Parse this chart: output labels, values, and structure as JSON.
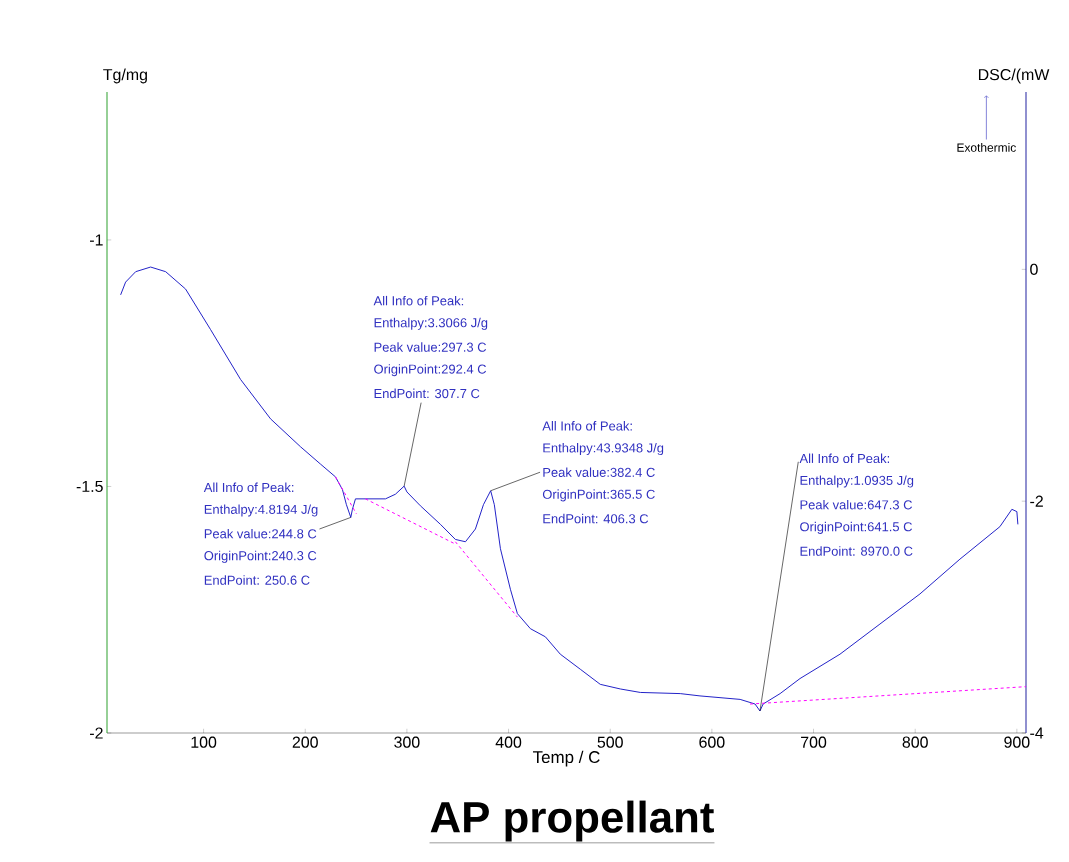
{
  "chart_data": {
    "type": "line",
    "title": "**AP propellant**",
    "xlabel": "Temp / C",
    "ylabel": "DSC/(mW",
    "y2label": "Tg/mg",
    "xlim": [
      5,
      909
    ],
    "xticks": [
      100,
      200,
      300,
      400,
      500,
      600,
      700,
      800,
      900
    ],
    "ylim": [
      -4,
      1.53
    ],
    "yticks": [
      -4,
      -2,
      0
    ],
    "y2lim": [
      -2,
      -0.7
    ],
    "y2ticks": [
      -2,
      -1.5,
      -1
    ],
    "grid": false,
    "legend": false,
    "marker": "none",
    "series": [
      {
        "color": "#2222c8",
        "line_style": "solid",
        "x": [
          18.4,
          23.3,
          33.2,
          47.9,
          62.7,
          82.3,
          106.9,
          136.4,
          165.9,
          195.3,
          215,
          229.7,
          236.6,
          240.5,
          244.8,
          246.4,
          249.4,
          259.2,
          278.9,
          288.7,
          297.3,
          300,
          313.3,
          333,
          347.7,
          357.6,
          367.4,
          375.3,
          382.4,
          386,
          392,
          401.8,
          408.7,
          421.5,
          436.2,
          450.9,
          470.6,
          490.2,
          509.9,
          529.6,
          568.9,
          588.3,
          627.8,
          642.5,
          647.3,
          650.4,
          667.1,
          686.7,
          726,
          765.3,
          804.7,
          844,
          883.3,
          895.1,
          900,
          901
        ],
        "values": [
          -0.22,
          -0.11,
          -0.02,
          0.02,
          -0.02,
          -0.17,
          -0.52,
          -0.95,
          -1.29,
          -1.53,
          -1.68,
          -1.79,
          -1.9,
          -2.03,
          -2.14,
          -2.07,
          -1.98,
          -1.98,
          -1.98,
          -1.94,
          -1.87,
          -1.92,
          -2.04,
          -2.2,
          -2.33,
          -2.35,
          -2.24,
          -2.03,
          -1.91,
          -2.03,
          -2.41,
          -2.76,
          -2.97,
          -3.1,
          -3.17,
          -3.32,
          -3.45,
          -3.58,
          -3.62,
          -3.65,
          -3.66,
          -3.68,
          -3.71,
          -3.75,
          -3.81,
          -3.75,
          -3.66,
          -3.53,
          -3.32,
          -3.06,
          -2.8,
          -2.5,
          -2.22,
          -2.07,
          -2.09,
          -2.2
        ]
      },
      {
        "color": "#ff00ff",
        "line_style": "dashed",
        "x": [
          229.7,
          250.4,
          null,
          259.2,
          347.7,
          null,
          347.7,
          408.7,
          null,
          637.6,
          909
        ],
        "values": [
          -1.79,
          -2.11,
          null,
          -1.98,
          -2.37,
          null,
          -2.35,
          -3.0,
          null,
          -3.75,
          -3.6
        ]
      }
    ],
    "annotations": [
      "All Info of Peak:",
      {
        "text": "Enthalpy:4.8194 J/g",
        "x": 244.8,
        "y": -2.14
      },
      "Peak value:244.8 C",
      "OriginPoint:240.3 C",
      "EndPoint: 250.6 C",
      "All Info of Peak:",
      "Enthalpy:3.3066 J/g",
      "Peak value:297.3 C",
      "OriginPoint:292.4 C",
      {
        "text": "EndPoint: 307.7 C",
        "x": 297.3,
        "y": -1.87
      },
      "All Info of Peak:",
      "Enthalpy:43.9348 J/g",
      {
        "text": "Peak value:382.4 C",
        "x": 382.4,
        "y": -1.91
      },
      "OriginPoint:365.5 C",
      "EndPoint: 406.3 C",
      {
        "text": "All Info of Peak:",
        "x": 647.3,
        "y": -3.81
      },
      "Enthalpy:1.0935 J/g",
      "Peak value:647.3 C",
      "OriginPoint:641.5 C",
      "EndPoint: 8970.0 C",
      "Exothermic"
    ]
  }
}
